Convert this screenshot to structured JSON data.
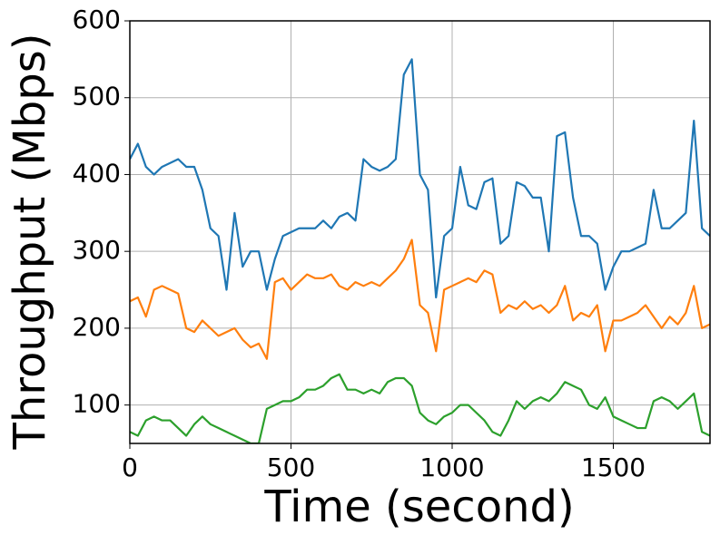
{
  "chart_data": {
    "type": "line",
    "xlabel": "Time (second)",
    "ylabel": "Throughput (Mbps)",
    "x": [
      0,
      25,
      50,
      75,
      100,
      125,
      150,
      175,
      200,
      225,
      250,
      275,
      300,
      325,
      350,
      375,
      400,
      425,
      450,
      475,
      500,
      525,
      550,
      575,
      600,
      625,
      650,
      675,
      700,
      725,
      750,
      775,
      800,
      825,
      850,
      875,
      900,
      925,
      950,
      975,
      1000,
      1025,
      1050,
      1075,
      1100,
      1125,
      1150,
      1175,
      1200,
      1225,
      1250,
      1275,
      1300,
      1325,
      1350,
      1375,
      1400,
      1425,
      1450,
      1475,
      1500,
      1525,
      1550,
      1575,
      1600,
      1625,
      1650,
      1675,
      1700,
      1725,
      1750,
      1775,
      1800
    ],
    "series": [
      {
        "color": "#1f77b4",
        "values": [
          420,
          440,
          410,
          400,
          410,
          415,
          420,
          410,
          410,
          380,
          330,
          320,
          250,
          350,
          280,
          300,
          300,
          250,
          290,
          320,
          325,
          330,
          330,
          330,
          340,
          330,
          345,
          350,
          340,
          420,
          410,
          405,
          410,
          420,
          530,
          550,
          400,
          380,
          240,
          320,
          330,
          410,
          360,
          355,
          390,
          395,
          310,
          320,
          390,
          385,
          370,
          370,
          300,
          450,
          455,
          370,
          320,
          320,
          310,
          250,
          280,
          300,
          300,
          305,
          310,
          380,
          330,
          330,
          340,
          350,
          470,
          330,
          320
        ]
      },
      {
        "color": "#ff7f0e",
        "values": [
          235,
          240,
          215,
          250,
          255,
          250,
          245,
          200,
          195,
          210,
          200,
          190,
          195,
          200,
          185,
          175,
          180,
          160,
          260,
          265,
          250,
          260,
          270,
          265,
          265,
          270,
          255,
          250,
          260,
          255,
          260,
          255,
          265,
          275,
          290,
          315,
          230,
          220,
          170,
          250,
          255,
          260,
          265,
          260,
          275,
          270,
          220,
          230,
          225,
          235,
          225,
          230,
          220,
          230,
          255,
          210,
          220,
          215,
          230,
          170,
          210,
          210,
          215,
          220,
          230,
          215,
          200,
          215,
          205,
          220,
          255,
          200,
          205
        ]
      },
      {
        "color": "#2ca02c",
        "values": [
          65,
          60,
          80,
          85,
          80,
          80,
          70,
          60,
          75,
          85,
          75,
          70,
          65,
          60,
          55,
          50,
          50,
          95,
          100,
          105,
          105,
          110,
          120,
          120,
          125,
          135,
          140,
          120,
          120,
          115,
          120,
          115,
          130,
          135,
          135,
          125,
          90,
          80,
          75,
          85,
          90,
          100,
          100,
          90,
          80,
          65,
          60,
          80,
          105,
          95,
          105,
          110,
          105,
          115,
          130,
          125,
          120,
          100,
          95,
          110,
          85,
          80,
          75,
          70,
          70,
          105,
          110,
          105,
          95,
          105,
          115,
          65,
          60
        ]
      }
    ],
    "xlim": [
      0,
      1800
    ],
    "xticks": [
      0,
      500,
      1000,
      1500
    ],
    "ylim": [
      50,
      600
    ],
    "yticks": [
      100,
      200,
      300,
      400,
      500,
      600
    ],
    "grid": true
  }
}
